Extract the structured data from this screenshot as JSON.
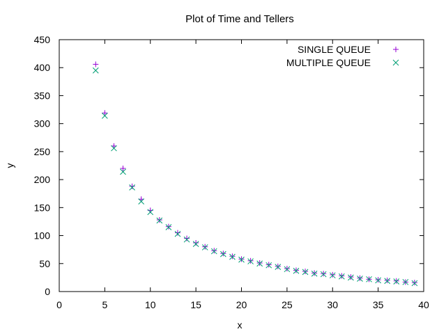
{
  "chart_data": {
    "type": "scatter",
    "title": "Plot of Time and Tellers",
    "xlabel": "x",
    "ylabel": "y",
    "xlim": [
      0,
      40
    ],
    "ylim": [
      0,
      450
    ],
    "x_ticks": [
      0,
      5,
      10,
      15,
      20,
      25,
      30,
      35,
      40
    ],
    "y_ticks": [
      0,
      50,
      100,
      150,
      200,
      250,
      300,
      350,
      400,
      450
    ],
    "grid": false,
    "legend_position": "top-right",
    "x": [
      4,
      5,
      6,
      7,
      8,
      9,
      10,
      11,
      12,
      13,
      14,
      15,
      16,
      17,
      18,
      19,
      20,
      21,
      22,
      23,
      24,
      25,
      26,
      27,
      28,
      29,
      30,
      31,
      32,
      33,
      34,
      35,
      36,
      37,
      38,
      39
    ],
    "series": [
      {
        "name": "SINGLE QUEUE",
        "marker": "plus",
        "color": "#9400d3",
        "values": [
          406,
          319,
          260,
          220,
          188,
          165,
          145,
          128,
          116,
          105,
          95,
          87,
          80,
          73,
          68,
          63,
          58,
          55,
          51,
          48,
          45,
          41,
          38,
          36,
          33,
          32,
          30,
          28,
          26,
          24,
          22,
          21,
          20,
          19,
          17,
          16
        ]
      },
      {
        "name": "MULTIPLE QUEUE",
        "marker": "cross",
        "color": "#009e73",
        "values": [
          395,
          314,
          256,
          214,
          186,
          161,
          142,
          127,
          115,
          103,
          93,
          85,
          79,
          72,
          67,
          62,
          57,
          54,
          50,
          47,
          44,
          40,
          37,
          35,
          32,
          31,
          29,
          27,
          25,
          23,
          22,
          20,
          19,
          18,
          17,
          15
        ]
      }
    ]
  }
}
